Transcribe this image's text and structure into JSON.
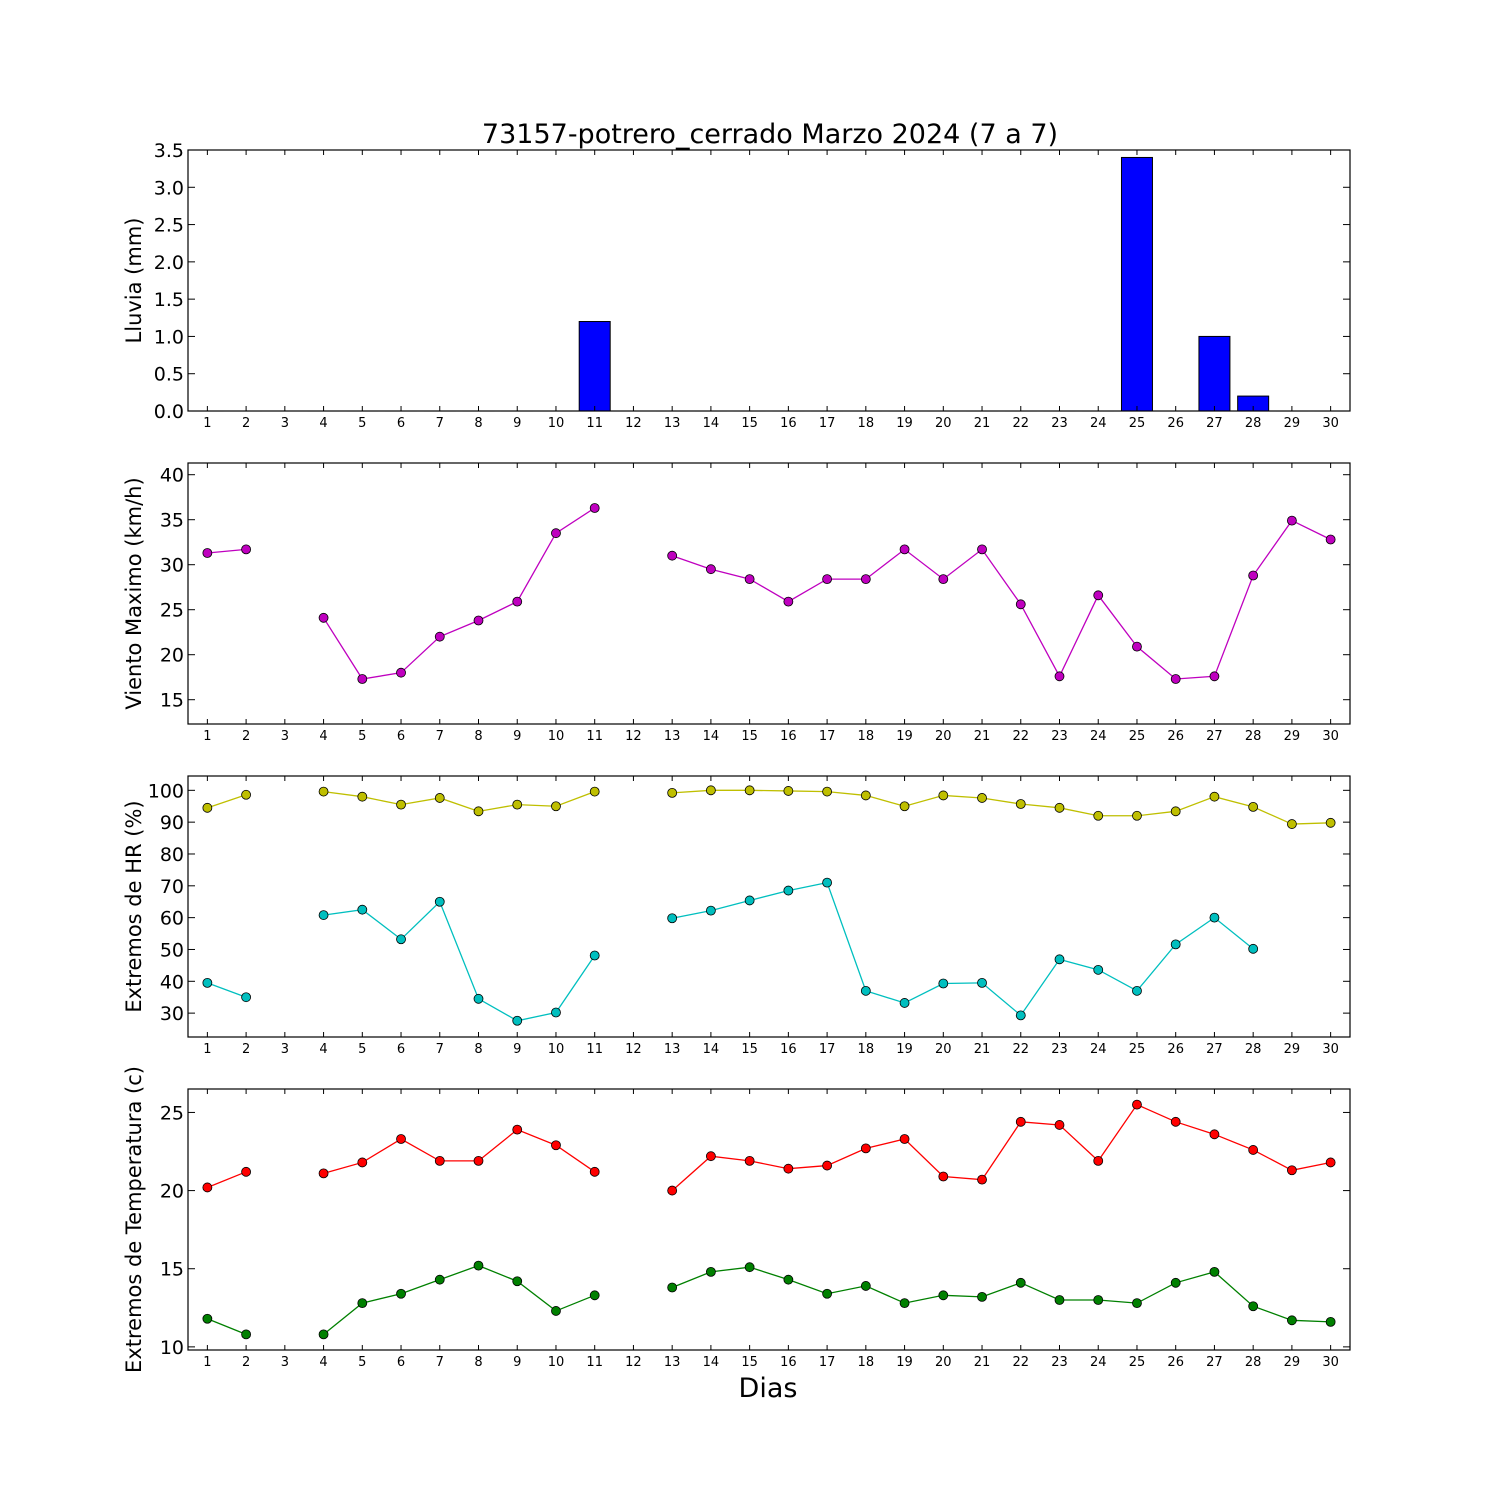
{
  "figure": {
    "title": "73157-potrero_cerrado Marzo 2024  (7 a 7)",
    "xlabel": "Dias"
  },
  "chart_data": [
    {
      "type": "bar",
      "ylabel": "Lluvia (mm)",
      "ylim": [
        0,
        3.5
      ],
      "yticks": [
        "0.0",
        "0.5",
        "1.0",
        "1.5",
        "2.0",
        "2.5",
        "3.0",
        "3.5"
      ],
      "x": [
        1,
        2,
        3,
        4,
        5,
        6,
        7,
        8,
        9,
        10,
        11,
        12,
        13,
        14,
        15,
        16,
        17,
        18,
        19,
        20,
        21,
        22,
        23,
        24,
        25,
        26,
        27,
        28,
        29,
        30
      ],
      "xticks": [
        1,
        2,
        3,
        4,
        5,
        6,
        7,
        8,
        9,
        10,
        11,
        12,
        13,
        14,
        15,
        16,
        17,
        18,
        19,
        20,
        21,
        22,
        23,
        24,
        25,
        26,
        27,
        28,
        29,
        30
      ],
      "values": [
        0,
        0,
        null,
        0,
        0,
        0,
        0,
        0,
        0,
        0,
        1.2,
        null,
        0,
        0,
        0,
        0,
        0,
        0,
        0,
        0,
        0,
        0,
        0,
        0,
        3.4,
        0,
        1.0,
        0.2,
        0,
        0
      ],
      "color": "#0000ff"
    },
    {
      "type": "line",
      "ylabel": "Viento Maximo (km/h)",
      "ylim": [
        12.3,
        41.3
      ],
      "yticks": [
        15,
        20,
        25,
        30,
        35,
        40
      ],
      "x": [
        1,
        2,
        3,
        4,
        5,
        6,
        7,
        8,
        9,
        10,
        11,
        12,
        13,
        14,
        15,
        16,
        17,
        18,
        19,
        20,
        21,
        22,
        23,
        24,
        25,
        26,
        27,
        28,
        29,
        30
      ],
      "xticks": [
        1,
        2,
        3,
        4,
        5,
        6,
        7,
        8,
        9,
        10,
        11,
        12,
        13,
        14,
        15,
        16,
        17,
        18,
        19,
        20,
        21,
        22,
        23,
        24,
        25,
        26,
        27,
        28,
        29,
        30
      ],
      "series": [
        {
          "color": "#bf00bf",
          "values": [
            31.3,
            31.7,
            null,
            24.1,
            17.3,
            18.0,
            22.0,
            23.8,
            25.9,
            33.5,
            36.3,
            null,
            31.0,
            29.5,
            28.4,
            25.9,
            28.4,
            28.4,
            31.7,
            28.4,
            31.7,
            25.6,
            17.6,
            26.6,
            20.9,
            17.3,
            17.6,
            28.8,
            34.9,
            32.8
          ]
        }
      ]
    },
    {
      "type": "line",
      "ylabel": "Extremos de HR (%)",
      "ylim": [
        22.5,
        104.5
      ],
      "yticks": [
        30,
        40,
        50,
        60,
        70,
        80,
        90,
        100
      ],
      "x": [
        1,
        2,
        3,
        4,
        5,
        6,
        7,
        8,
        9,
        10,
        11,
        12,
        13,
        14,
        15,
        16,
        17,
        18,
        19,
        20,
        21,
        22,
        23,
        24,
        25,
        26,
        27,
        28,
        29,
        30
      ],
      "xticks": [
        1,
        2,
        3,
        4,
        5,
        6,
        7,
        8,
        9,
        10,
        11,
        12,
        13,
        14,
        15,
        16,
        17,
        18,
        19,
        20,
        21,
        22,
        23,
        24,
        25,
        26,
        27,
        28,
        29,
        30
      ],
      "series": [
        {
          "color": "#bfbf00",
          "values": [
            94.5,
            98.6,
            null,
            99.6,
            98.0,
            95.5,
            97.6,
            93.4,
            95.5,
            95.0,
            99.6,
            null,
            99.2,
            100.0,
            100.0,
            99.8,
            99.6,
            98.4,
            95.0,
            98.4,
            97.6,
            95.7,
            94.5,
            92.0,
            92.0,
            93.4,
            98.0,
            94.8,
            89.4,
            89.8
          ]
        },
        {
          "color": "#00bfbf",
          "values": [
            39.5,
            35.0,
            null,
            60.8,
            62.5,
            53.2,
            65.0,
            34.5,
            27.6,
            30.2,
            48.1,
            null,
            59.8,
            62.2,
            65.4,
            68.5,
            71.0,
            37.0,
            33.2,
            39.3,
            39.5,
            29.3,
            46.9,
            43.6,
            37.0,
            51.6,
            60.0,
            50.2,
            null,
            null
          ]
        }
      ]
    },
    {
      "type": "line",
      "ylabel": "Extremos de Temperatura (c)",
      "ylim": [
        9.8,
        26.5
      ],
      "yticks": [
        10,
        15,
        20,
        25
      ],
      "x": [
        1,
        2,
        3,
        4,
        5,
        6,
        7,
        8,
        9,
        10,
        11,
        12,
        13,
        14,
        15,
        16,
        17,
        18,
        19,
        20,
        21,
        22,
        23,
        24,
        25,
        26,
        27,
        28,
        29,
        30
      ],
      "xticks": [
        1,
        2,
        3,
        4,
        5,
        6,
        7,
        8,
        9,
        10,
        11,
        12,
        13,
        14,
        15,
        16,
        17,
        18,
        19,
        20,
        21,
        22,
        23,
        24,
        25,
        26,
        27,
        28,
        29,
        30
      ],
      "series": [
        {
          "color": "#ff0000",
          "values": [
            20.2,
            21.2,
            null,
            21.1,
            21.8,
            23.3,
            21.9,
            21.9,
            23.9,
            22.9,
            21.2,
            null,
            20.0,
            22.2,
            21.9,
            21.4,
            21.6,
            22.7,
            23.3,
            20.9,
            20.7,
            24.4,
            24.2,
            21.9,
            25.5,
            24.4,
            23.6,
            22.6,
            21.3,
            21.8
          ]
        },
        {
          "color": "#008000",
          "values": [
            11.8,
            10.8,
            null,
            10.8,
            12.8,
            13.4,
            14.3,
            15.2,
            14.2,
            12.3,
            13.3,
            null,
            13.8,
            14.8,
            15.1,
            14.3,
            13.4,
            13.9,
            12.8,
            13.3,
            13.2,
            14.1,
            13.0,
            13.0,
            12.8,
            14.1,
            14.8,
            12.6,
            11.7,
            11.6
          ]
        }
      ]
    }
  ]
}
